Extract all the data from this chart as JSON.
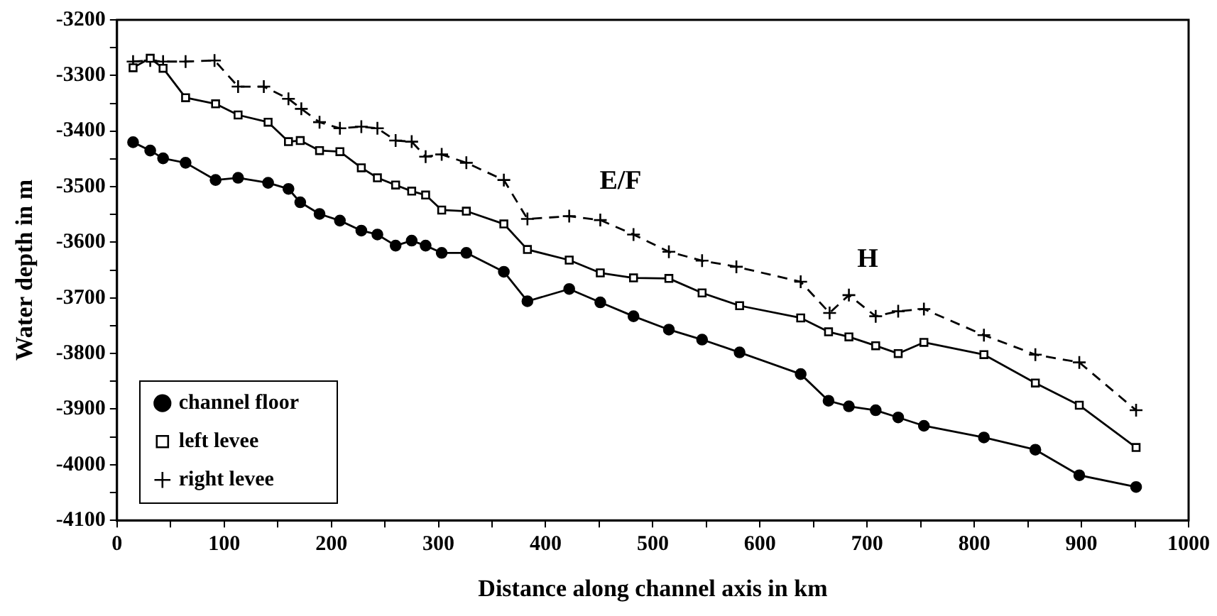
{
  "chart_data": {
    "type": "line",
    "xlabel": "Distance along channel axis in km",
    "ylabel": "Water depth in m",
    "xlim": [
      0,
      1000
    ],
    "xticks": [
      0,
      {
        "value": 50,
        "label": null
      },
      100,
      {
        "value": 150,
        "label": null
      },
      200,
      {
        "value": 250,
        "label": null
      },
      300,
      {
        "value": 350,
        "label": null
      },
      400,
      {
        "value": 450,
        "label": null
      },
      500,
      {
        "value": 550,
        "label": null
      },
      600,
      {
        "value": 650,
        "label": null
      },
      700,
      {
        "value": 750,
        "label": null
      },
      800,
      {
        "value": 850,
        "label": null
      },
      900,
      {
        "value": 950,
        "label": null
      },
      1000
    ],
    "ylim": [
      -4100,
      -3200
    ],
    "yticks": [
      -4100,
      {
        "value": -4050,
        "label": null
      },
      -4000,
      {
        "value": -3950,
        "label": null
      },
      -3900,
      {
        "value": -3850,
        "label": null
      },
      -3800,
      {
        "value": -3750,
        "label": null
      },
      -3700,
      {
        "value": -3650,
        "label": null
      },
      -3600,
      {
        "value": -3550,
        "label": null
      },
      -3500,
      {
        "value": -3450,
        "label": null
      },
      -3400,
      {
        "value": -3350,
        "label": null
      },
      -3300,
      {
        "value": -3250,
        "label": null
      },
      -3200
    ],
    "grid": false,
    "legend": "bottom left",
    "annotations": [
      "E/F",
      "H"
    ],
    "series": [
      {
        "name": "channel floor",
        "color": "#000000",
        "marker": "circle",
        "line_style": "solid",
        "x": [
          15,
          31,
          43,
          64,
          92,
          113,
          141,
          160,
          171,
          189,
          208,
          228,
          243,
          260,
          275,
          288,
          303,
          326,
          361,
          383,
          422,
          451,
          482,
          515,
          546,
          581,
          638,
          664,
          683,
          708,
          729,
          753,
          809,
          857,
          898,
          951
        ],
        "values": [
          -3420,
          -3435,
          -3449,
          -3457,
          -3488,
          -3484,
          -3493,
          -3504,
          -3528,
          -3549,
          -3561,
          -3579,
          -3586,
          -3606,
          -3597,
          -3606,
          -3619,
          -3619,
          -3653,
          -3706,
          -3684,
          -3708,
          -3733,
          -3757,
          -3775,
          -3798,
          -3837,
          -3885,
          -3895,
          -3902,
          -3915,
          -3930,
          -3951,
          -3973,
          -4019,
          -4040
        ]
      },
      {
        "name": "left levee",
        "color": "#000000",
        "marker": "square",
        "line_style": "solid",
        "x": [
          15,
          31,
          43,
          64,
          92,
          113,
          141,
          160,
          171,
          189,
          208,
          228,
          243,
          260,
          275,
          288,
          303,
          326,
          361,
          383,
          422,
          451,
          482,
          515,
          546,
          581,
          638,
          664,
          683,
          708,
          729,
          753,
          809,
          857,
          898,
          951
        ],
        "values": [
          -3286,
          -3269,
          -3287,
          -3340,
          -3351,
          -3371,
          -3384,
          -3419,
          -3417,
          -3435,
          -3437,
          -3466,
          -3484,
          -3497,
          -3508,
          -3515,
          -3542,
          -3544,
          -3567,
          -3613,
          -3632,
          -3655,
          -3664,
          -3665,
          -3691,
          -3714,
          -3736,
          -3761,
          -3770,
          -3786,
          -3800,
          -3780,
          -3802,
          -3853,
          -3893,
          -3969
        ]
      },
      {
        "name": "right levee",
        "color": "#000000",
        "marker": "cross",
        "line_style": "dashed",
        "x": [
          15,
          31,
          43,
          64,
          91,
          113,
          137,
          160,
          172,
          189,
          208,
          228,
          243,
          260,
          275,
          288,
          303,
          326,
          361,
          383,
          422,
          451,
          482,
          515,
          546,
          578,
          638,
          665,
          683,
          708,
          729,
          753,
          809,
          857,
          898,
          951
        ],
        "values": [
          -3275,
          -3273,
          -3275,
          -3275,
          -3273,
          -3320,
          -3320,
          -3342,
          -3360,
          -3384,
          -3395,
          -3392,
          -3395,
          -3417,
          -3419,
          -3446,
          -3442,
          -3457,
          -3488,
          -3558,
          -3553,
          -3560,
          -3586,
          -3617,
          -3633,
          -3644,
          -3671,
          -3727,
          -3695,
          -3733,
          -3724,
          -3720,
          -3767,
          -3802,
          -3816,
          -3902
        ]
      }
    ]
  }
}
